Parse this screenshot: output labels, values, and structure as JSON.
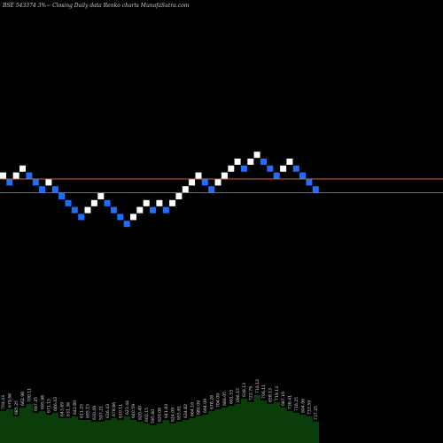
{
  "header": {
    "title": "BSE 543374  3%~  Closing Daily data  Renko  charts MunafaSutra.com"
  },
  "colors": {
    "background": "#000000",
    "brick_up": "#ffffff",
    "brick_down": "#1e6fff",
    "reference_line": "#c8643c",
    "volume_fill": "#0a3d0a"
  },
  "chart_data": {
    "type": "renko",
    "brick_levels": [
      3,
      2,
      3,
      4,
      3,
      2,
      1,
      2,
      1,
      0,
      -1,
      -2,
      -3,
      -2,
      -1,
      0,
      -1,
      -2,
      -3,
      -4,
      -3,
      -2,
      -1,
      -2,
      -1,
      -2,
      -1,
      0,
      1,
      2,
      3,
      2,
      1,
      2,
      3,
      4,
      5,
      4,
      5,
      6,
      5,
      4,
      3,
      4,
      5,
      4,
      3,
      2,
      1
    ],
    "brick_colors": [
      "up",
      "down",
      "up",
      "up",
      "down",
      "down",
      "down",
      "up",
      "down",
      "down",
      "down",
      "down",
      "down",
      "up",
      "up",
      "up",
      "down",
      "down",
      "down",
      "down",
      "up",
      "up",
      "up",
      "down",
      "up",
      "down",
      "up",
      "up",
      "up",
      "up",
      "up",
      "down",
      "down",
      "up",
      "up",
      "up",
      "up",
      "down",
      "up",
      "up",
      "down",
      "down",
      "down",
      "up",
      "up",
      "down",
      "down",
      "down",
      "down"
    ],
    "reference_lines": [
      {
        "brick_level": 2.5
      },
      {
        "brick_level": 0.5
      }
    ],
    "volumes": [
      18,
      19,
      15,
      20,
      22,
      17,
      18,
      16,
      17,
      14,
      14,
      15,
      13,
      13,
      12,
      12,
      13,
      14,
      13,
      15,
      13,
      12,
      11,
      10,
      11,
      13,
      11,
      12,
      13,
      14,
      15,
      16,
      18,
      19,
      20,
      21,
      22,
      25,
      23,
      27,
      24,
      22,
      23,
      20,
      18,
      17,
      16,
      15,
      12
    ],
    "volume_labels": [
      "704.43",
      "679.68",
      "685.25",
      "662.98",
      "700.11",
      "697.25",
      "695.98",
      "671.15",
      "686.43",
      "643.69",
      "631.36",
      "642.80",
      "611.25",
      "695.15",
      "630.49",
      "597.21",
      "636.43",
      "678.86",
      "610.11",
      "623.44",
      "640.59",
      "620.40",
      "602.15",
      "595.60",
      "620.08",
      "641.83",
      "624.09",
      "655.81",
      "634.82",
      "664.16",
      "680.09",
      "694.09",
      "678.28",
      "704.09",
      "686.05",
      "691.53",
      "696.15",
      "638.13",
      "722.79",
      "716.12",
      "706.11",
      "658.13",
      "719.13",
      "687.16",
      "738.41",
      "716.25",
      "694.96",
      "733.59",
      "737.25"
    ]
  }
}
